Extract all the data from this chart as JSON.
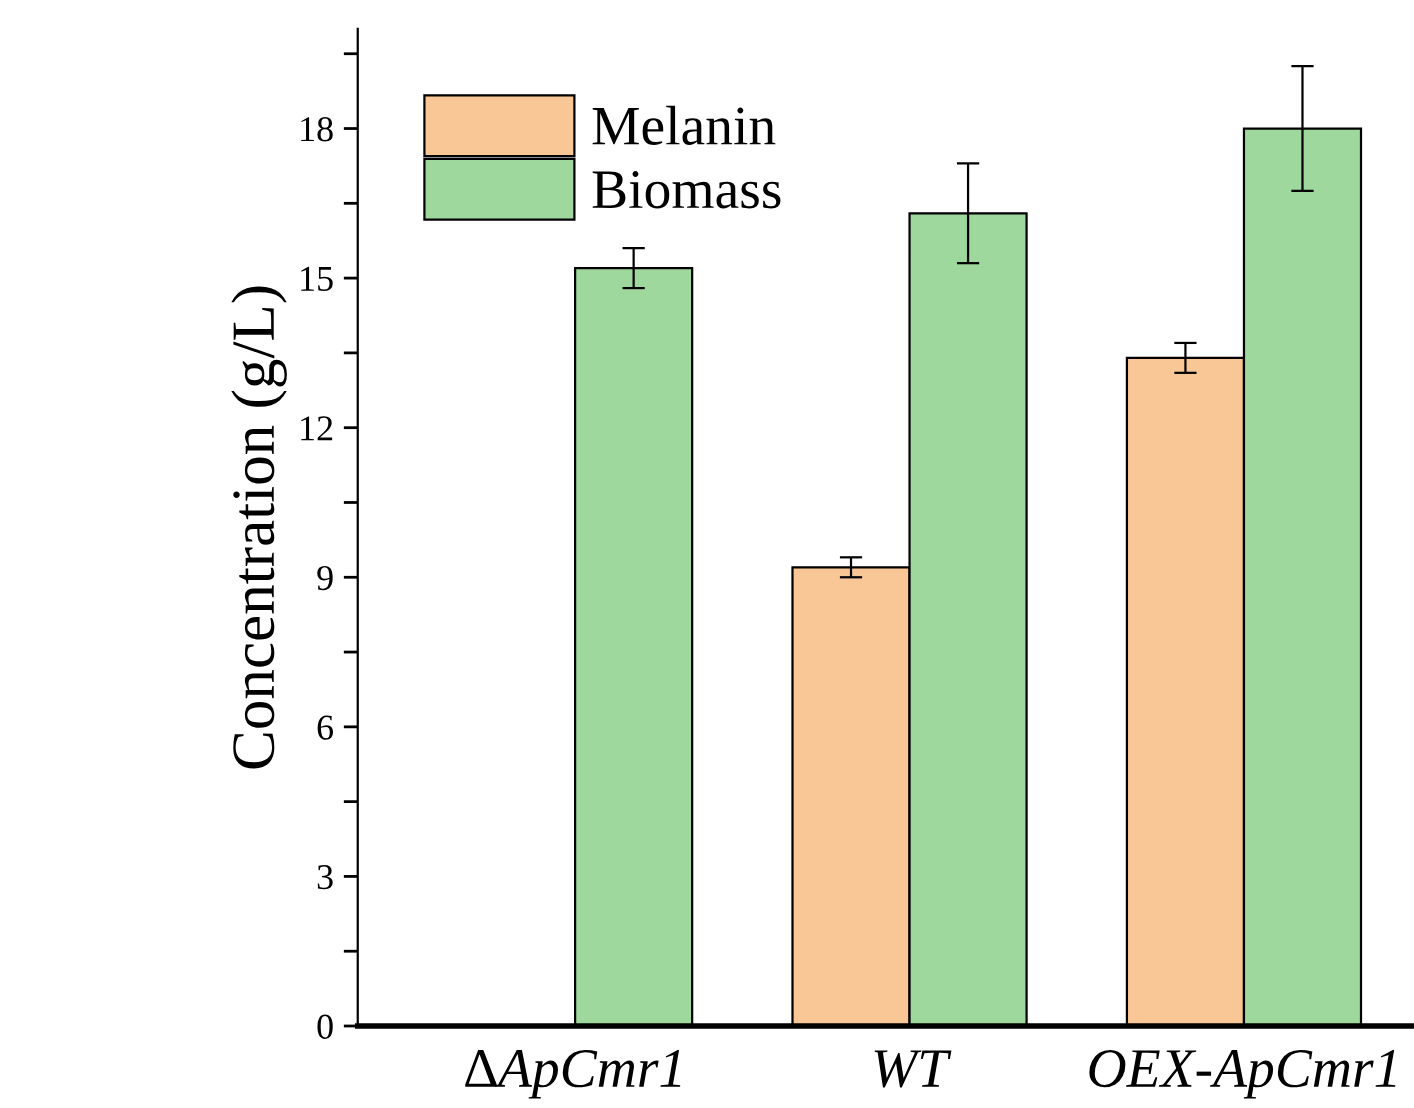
{
  "chart_data": {
    "type": "bar",
    "ylabel": "Concentration (g/L)",
    "categories": [
      "∆ApCmr1",
      "WT",
      "OEX-ApCmr1"
    ],
    "series": [
      {
        "name": "Melanin",
        "color": "#f9c695",
        "values": [
          null,
          9.2,
          13.4
        ],
        "errors": [
          null,
          0.2,
          0.3
        ]
      },
      {
        "name": "Biomass",
        "color": "#9fd89c",
        "values": [
          15.2,
          16.3,
          18.0
        ],
        "errors": [
          0.4,
          1.0,
          1.25
        ]
      }
    ],
    "ylim": [
      0,
      20
    ],
    "yticks": [
      0,
      {
        "value": 1.5,
        "label": null
      },
      3,
      {
        "value": 4.5,
        "label": null
      },
      6,
      {
        "value": 7.5,
        "label": null
      },
      9,
      {
        "value": 10.5,
        "label": null
      },
      12,
      {
        "value": 13.5,
        "label": null
      },
      15,
      {
        "value": 16.5,
        "label": null
      },
      18,
      {
        "value": 19.5,
        "label": null
      }
    ],
    "legend": "top left",
    "grid": false
  }
}
